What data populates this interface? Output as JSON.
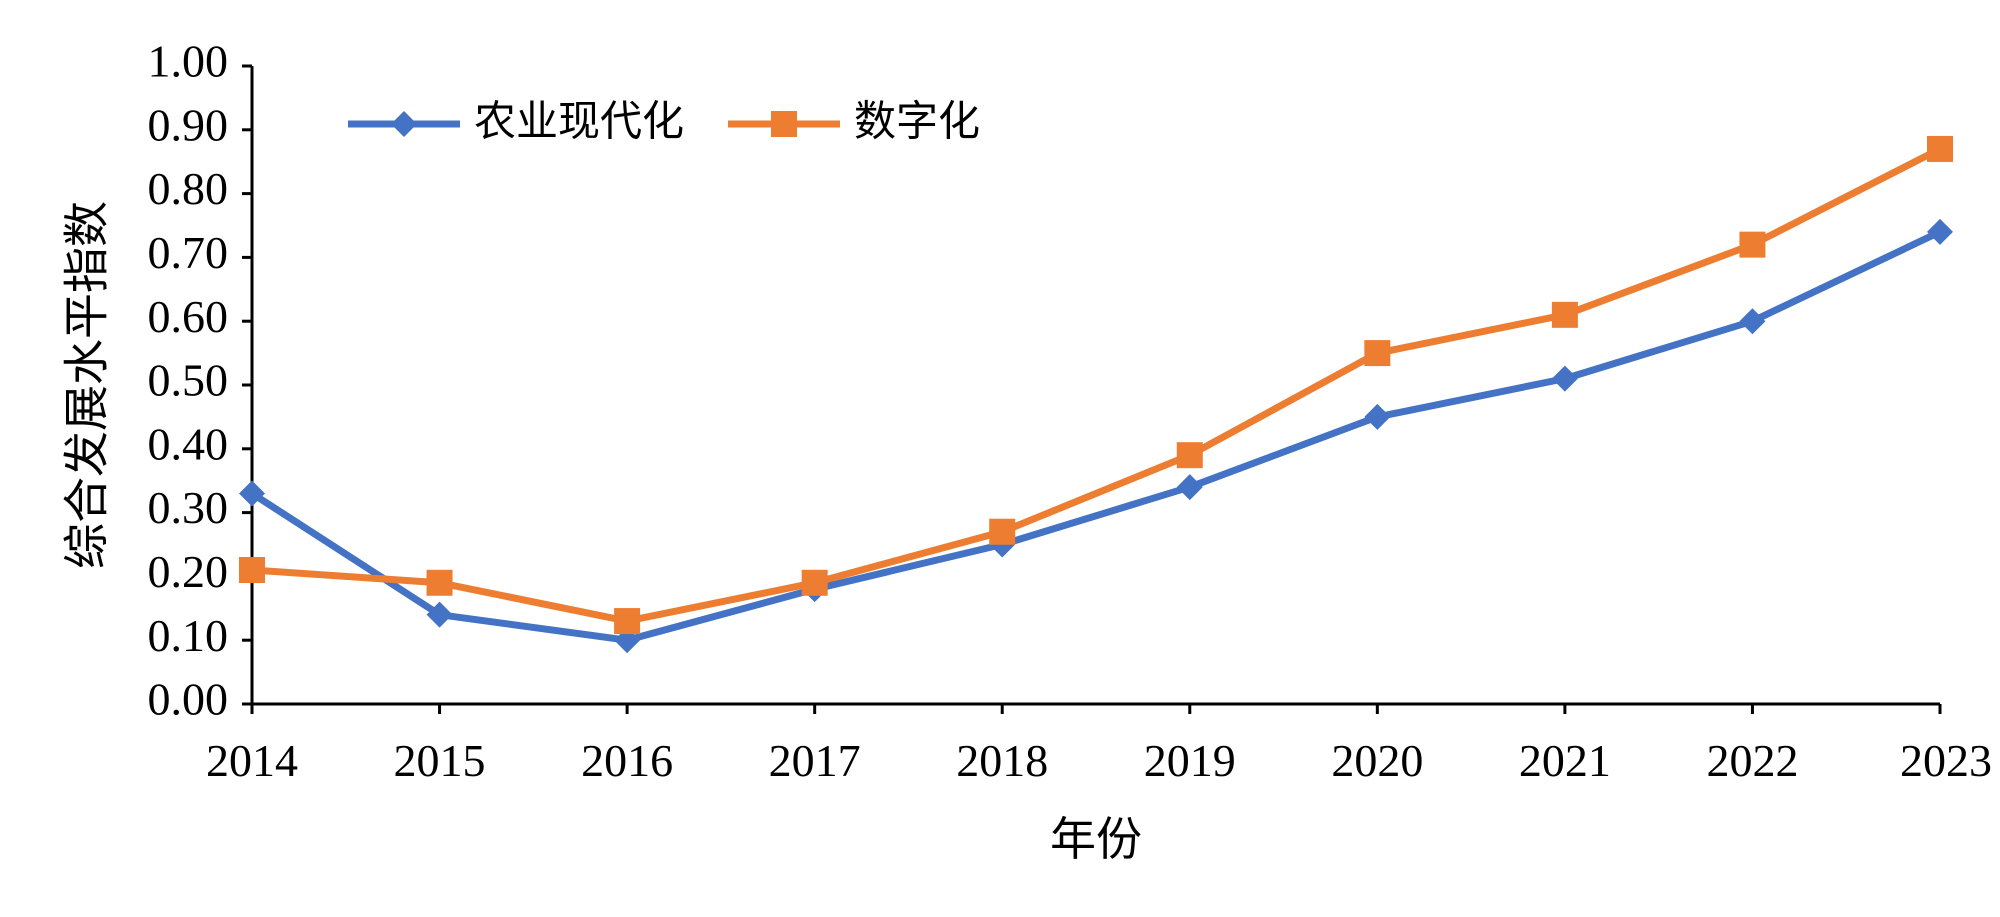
{
  "chart_data": {
    "type": "line",
    "title": "",
    "xlabel": "年份",
    "ylabel": "综合发展水平指数",
    "categories": [
      "2014",
      "2015",
      "2016",
      "2017",
      "2018",
      "2019",
      "2020",
      "2021",
      "2022",
      "2023"
    ],
    "ylim": [
      0,
      1
    ],
    "yticks": [
      "0.00",
      "0.10",
      "0.20",
      "0.30",
      "0.40",
      "0.50",
      "0.60",
      "0.70",
      "0.80",
      "0.90",
      "1.00"
    ],
    "grid": false,
    "legend_position": "top-left",
    "series": [
      {
        "name": "农业现代化",
        "color": "#4472C4",
        "marker": "diamond",
        "values": [
          0.33,
          0.14,
          0.1,
          0.18,
          0.25,
          0.34,
          0.45,
          0.51,
          0.6,
          0.74
        ]
      },
      {
        "name": "数字化",
        "color": "#ED7D31",
        "marker": "square",
        "values": [
          0.21,
          0.19,
          0.13,
          0.19,
          0.27,
          0.39,
          0.55,
          0.61,
          0.72,
          0.87
        ]
      }
    ]
  }
}
